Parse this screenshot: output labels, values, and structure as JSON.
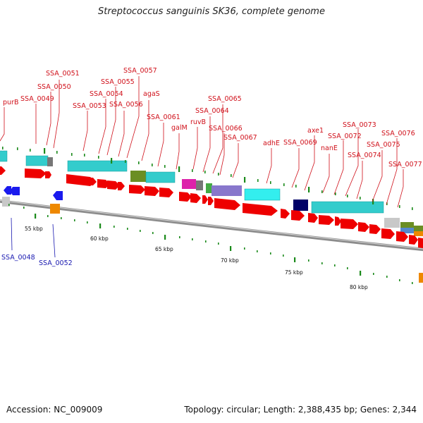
{
  "title": "Streptococcus sanguinis SK36, complete genome",
  "footer": {
    "accession": "Accession: NC_009009",
    "summary": "Topology: circular; Length: 2,388,435 bp; Genes: 2,344"
  },
  "colors": {
    "forward_label": "#d0101a",
    "reverse_label": "#1818b0",
    "cds": "#ee0000",
    "backbone": "#8c8c8c",
    "tick": "#1a8a1a"
  },
  "genes_forward": [
    {
      "name": "purB"
    },
    {
      "name": "SSA_0049"
    },
    {
      "name": "SSA_0050"
    },
    {
      "name": "SSA_0051"
    },
    {
      "name": "SSA_0053"
    },
    {
      "name": "SSA_0054"
    },
    {
      "name": "SSA_0055"
    },
    {
      "name": "SSA_0056"
    },
    {
      "name": "SSA_0057"
    },
    {
      "name": "agaS"
    },
    {
      "name": "SSA_0061"
    },
    {
      "name": "galM"
    },
    {
      "name": "ruvB"
    },
    {
      "name": "SSA_0064"
    },
    {
      "name": "SSA_0065"
    },
    {
      "name": "SSA_0066"
    },
    {
      "name": "SSA_0067"
    },
    {
      "name": "adhE"
    },
    {
      "name": "SSA_0069"
    },
    {
      "name": "axe1"
    },
    {
      "name": "nanE"
    },
    {
      "name": "SSA_0072"
    },
    {
      "name": "SSA_0073"
    },
    {
      "name": "SSA_0074"
    },
    {
      "name": "SSA_0075"
    },
    {
      "name": "SSA_0076"
    },
    {
      "name": "SSA_0077"
    }
  ],
  "genes_reverse": [
    {
      "name": "SSA_0048"
    },
    {
      "name": "SSA_0052"
    }
  ],
  "ticks": [
    "55 kbp",
    "60 kbp",
    "65 kbp",
    "70 kbp",
    "75 kbp",
    "80 kbp"
  ]
}
